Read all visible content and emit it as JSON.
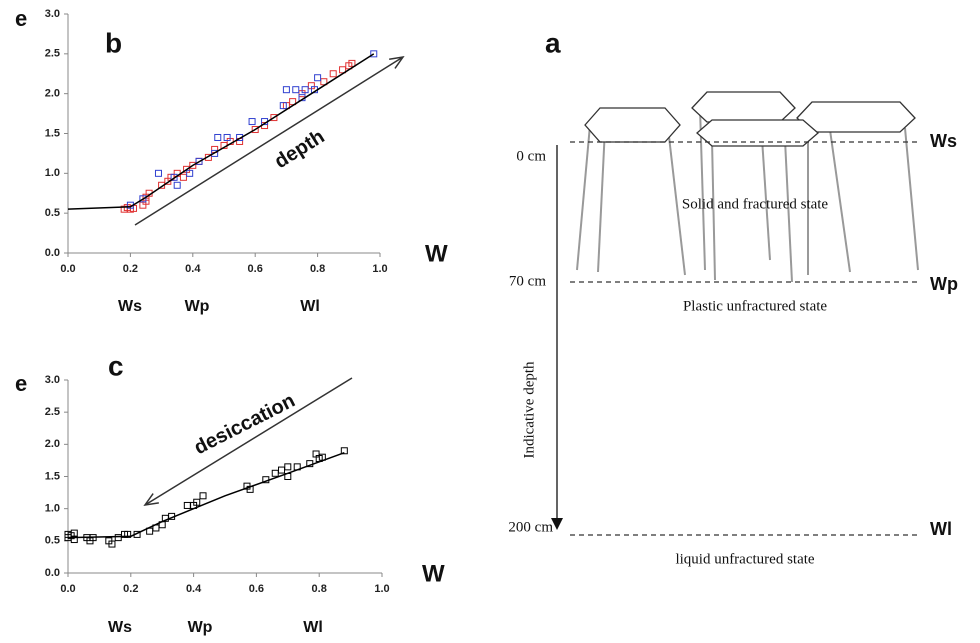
{
  "chart_data": [
    {
      "type": "scatter",
      "panel": "b",
      "ylabel": "e",
      "xlabel": "W",
      "annotation": "depth",
      "limit_labels": [
        "Ws",
        "Wp",
        "Wl"
      ],
      "xlim": [
        0,
        1
      ],
      "ylim": [
        0,
        3
      ],
      "xticks": [
        {
          "value": 0,
          "label": "0.0"
        },
        {
          "value": 0.2,
          "label": "0.2"
        },
        {
          "value": 0.4,
          "label": "0.4"
        },
        {
          "value": 0.6,
          "label": "0.6"
        },
        {
          "value": 0.8,
          "label": "0.8"
        },
        {
          "value": 1,
          "label": "1.0"
        }
      ],
      "yticks": [
        {
          "value": 0,
          "label": "0.0"
        },
        {
          "value": 0.5,
          "label": "0.5"
        },
        {
          "value": 1,
          "label": "1.0"
        },
        {
          "value": 1.5,
          "label": "1.5"
        },
        {
          "value": 2,
          "label": "2.0"
        },
        {
          "value": 2.5,
          "label": "2.5"
        },
        {
          "value": 3,
          "label": "3.0"
        }
      ],
      "series": [
        {
          "color": "#e03030",
          "mode": "markers",
          "x": [
            0.18,
            0.19,
            0.2,
            0.21,
            0.24,
            0.25,
            0.26,
            0.25,
            0.3,
            0.32,
            0.33,
            0.35,
            0.37,
            0.38,
            0.4,
            0.42,
            0.45,
            0.47,
            0.5,
            0.52,
            0.55,
            0.6,
            0.63,
            0.66,
            0.7,
            0.72,
            0.75,
            0.78,
            0.82,
            0.85,
            0.88,
            0.9,
            0.91
          ],
          "values": [
            0.55,
            0.57,
            0.55,
            0.56,
            0.6,
            0.7,
            0.75,
            0.65,
            0.85,
            0.9,
            0.95,
            1.0,
            0.95,
            1.05,
            1.1,
            1.15,
            1.2,
            1.3,
            1.35,
            1.4,
            1.4,
            1.55,
            1.6,
            1.7,
            1.85,
            1.9,
            2.0,
            2.1,
            2.15,
            2.25,
            2.3,
            2.35,
            2.38
          ]
        },
        {
          "color": "#3040d0",
          "mode": "markers",
          "x": [
            0.2,
            0.24,
            0.29,
            0.34,
            0.35,
            0.39,
            0.42,
            0.47,
            0.48,
            0.51,
            0.55,
            0.59,
            0.63,
            0.69,
            0.7,
            0.73,
            0.75,
            0.76,
            0.79,
            0.8,
            0.98
          ],
          "values": [
            0.6,
            0.68,
            1.0,
            0.95,
            0.85,
            1.0,
            1.15,
            1.25,
            1.45,
            1.45,
            1.45,
            1.65,
            1.65,
            1.85,
            2.05,
            2.05,
            1.95,
            2.05,
            2.05,
            2.2,
            2.5
          ]
        },
        {
          "color": "#000000",
          "mode": "line",
          "x": [
            0,
            0.2,
            0.25,
            0.4,
            0.6,
            0.8,
            0.98
          ],
          "values": [
            0.55,
            0.58,
            0.7,
            1.1,
            1.55,
            2.05,
            2.5
          ]
        }
      ]
    },
    {
      "type": "scatter",
      "panel": "c",
      "ylabel": "e",
      "xlabel": "W",
      "annotation": "desiccation",
      "limit_labels": [
        "Ws",
        "Wp",
        "Wl"
      ],
      "xlim": [
        0,
        1
      ],
      "ylim": [
        0,
        3
      ],
      "xticks": [
        {
          "value": 0,
          "label": "0.0"
        },
        {
          "value": 0.2,
          "label": "0.2"
        },
        {
          "value": 0.4,
          "label": "0.4"
        },
        {
          "value": 0.6,
          "label": "0.6"
        },
        {
          "value": 0.8,
          "label": "0.8"
        },
        {
          "value": 1,
          "label": "1.0"
        }
      ],
      "yticks": [
        {
          "value": 0,
          "label": "0.0"
        },
        {
          "value": 0.5,
          "label": "0.5"
        },
        {
          "value": 1,
          "label": "1.0"
        },
        {
          "value": 1.5,
          "label": "1.5"
        },
        {
          "value": 2,
          "label": "2.0"
        },
        {
          "value": 2.5,
          "label": "2.5"
        },
        {
          "value": 3,
          "label": "3.0"
        }
      ],
      "series": [
        {
          "color": "#000000",
          "mode": "markers",
          "x": [
            0,
            0,
            0.01,
            0.02,
            0.02,
            0.06,
            0.07,
            0.08,
            0.13,
            0.14,
            0.16,
            0.18,
            0.19,
            0.22,
            0.26,
            0.28,
            0.3,
            0.31,
            0.33,
            0.38,
            0.4,
            0.41,
            0.43,
            0.57,
            0.58,
            0.63,
            0.66,
            0.68,
            0.7,
            0.7,
            0.73,
            0.77,
            0.79,
            0.81,
            0.8,
            0.88
          ],
          "values": [
            0.55,
            0.6,
            0.58,
            0.62,
            0.52,
            0.55,
            0.5,
            0.55,
            0.5,
            0.45,
            0.55,
            0.6,
            0.6,
            0.6,
            0.65,
            0.7,
            0.75,
            0.85,
            0.88,
            1.05,
            1.05,
            1.1,
            1.2,
            1.35,
            1.3,
            1.45,
            1.55,
            1.6,
            1.5,
            1.65,
            1.65,
            1.7,
            1.85,
            1.8,
            1.78,
            1.9
          ]
        },
        {
          "color": "#000000",
          "mode": "line",
          "x": [
            0,
            0.2,
            0.3,
            0.5,
            0.7,
            0.88
          ],
          "values": [
            0.55,
            0.57,
            0.8,
            1.2,
            1.55,
            1.87
          ]
        }
      ]
    }
  ],
  "diagram": {
    "panel": "a",
    "limits": [
      "Ws",
      "Wp",
      "Wl"
    ],
    "depths": [
      "0 cm",
      "70 cm",
      "200 cm"
    ],
    "states": [
      "Solid and fractured state",
      "Plastic unfractured state",
      "liquid unfractured state"
    ],
    "axis_label": "Indicative depth"
  }
}
